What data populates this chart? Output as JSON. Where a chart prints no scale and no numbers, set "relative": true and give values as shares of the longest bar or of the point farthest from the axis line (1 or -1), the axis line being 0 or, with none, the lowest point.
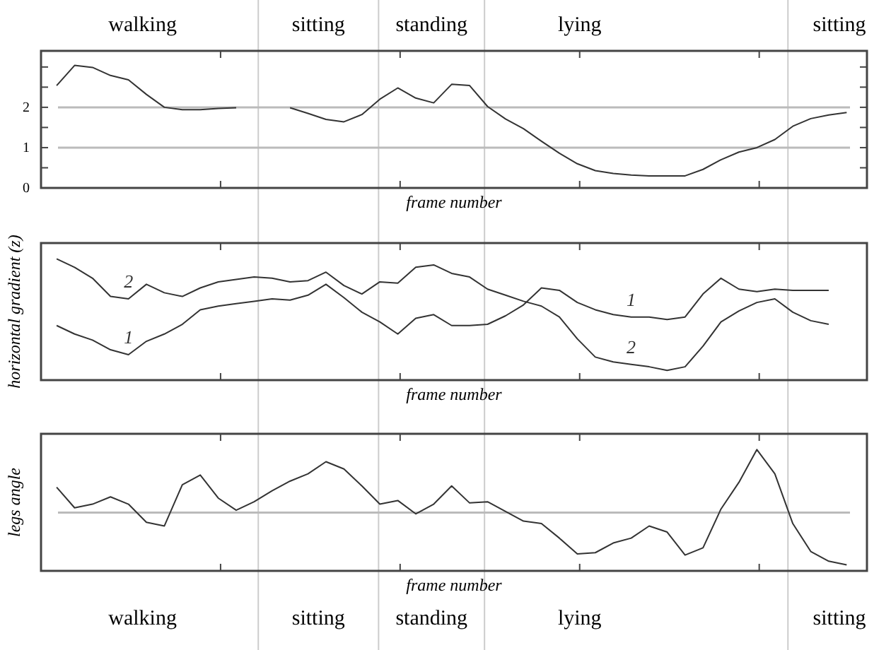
{
  "chart_data": [
    {
      "type": "line",
      "xlabel": "frame number",
      "tick_labels": "y",
      "categories": [
        null,
        null,
        null,
        null,
        null,
        null,
        null,
        null,
        null,
        null,
        null,
        null,
        null,
        null,
        null,
        null,
        null,
        null,
        null,
        null,
        null,
        null,
        null,
        null,
        null,
        null,
        null,
        null,
        null,
        null,
        null,
        null,
        null,
        null,
        null,
        null,
        null,
        null,
        null,
        null,
        null,
        null,
        null,
        null,
        null
      ],
      "ylim": [
        0,
        3.4
      ],
      "yticks": [
        0,
        {
          "value": 0.5,
          "label": null
        },
        1,
        {
          "value": 1.5,
          "label": null
        },
        2,
        {
          "value": 2.5,
          "label": null
        },
        {
          "value": 3,
          "label": null
        }
      ],
      "series": [
        {
          "color": "#333333",
          "values": [
            2.54,
            3.04,
            2.99,
            2.79,
            2.68,
            2.32,
            2.0,
            1.94,
            1.94,
            1.97,
            1.99,
            null,
            null,
            null,
            null,
            null,
            null,
            null,
            null,
            null,
            null,
            null,
            null,
            null,
            null,
            null,
            null,
            null,
            null,
            null,
            null,
            null,
            null,
            null,
            null,
            null,
            null,
            null,
            null,
            null,
            null,
            null,
            null,
            null,
            null
          ]
        },
        {
          "color": "#333333",
          "values": [
            null,
            null,
            null,
            null,
            null,
            null,
            null,
            null,
            null,
            null,
            null,
            null,
            null,
            1.99,
            1.85,
            1.7,
            1.64,
            1.82,
            2.2,
            2.48,
            2.23,
            2.11,
            2.57,
            2.54,
            2.02,
            1.71,
            1.47,
            1.16,
            0.86,
            0.6,
            0.43,
            0.36,
            0.32,
            0.3,
            0.3,
            0.3,
            0.46,
            0.7,
            0.89,
            1.0,
            1.2,
            1.53,
            1.72,
            1.81,
            1.87
          ]
        }
      ],
      "ref_lines": [
        {
          "axis": "y",
          "value": 1,
          "color": "#bbbbbb"
        },
        {
          "axis": "y",
          "value": 2,
          "color": "#bbbbbb"
        }
      ],
      "annotations": [
        "walking",
        "sitting",
        "standing",
        "lying",
        "sitting"
      ]
    },
    {
      "type": "line",
      "ylabel": "horizontal gradient (z)",
      "xlabel": "frame number",
      "relative": true,
      "tick_labels": false,
      "categories": [
        null,
        null,
        null,
        null,
        null,
        null,
        null,
        null,
        null,
        null,
        null,
        null,
        null,
        null,
        null,
        null,
        null,
        null,
        null,
        null,
        null,
        null,
        null,
        null,
        null,
        null,
        null,
        null,
        null,
        null,
        null,
        null,
        null,
        null,
        null,
        null,
        null,
        null,
        null,
        null,
        null,
        null,
        null,
        null,
        null
      ],
      "series": [
        {
          "name": "2",
          "color": "#333333",
          "values": [
            1.0,
            0.93,
            0.84,
            0.69,
            0.67,
            0.79,
            0.72,
            0.69,
            0.76,
            0.81,
            0.83,
            0.85,
            0.84,
            0.81,
            0.82,
            0.89,
            0.78,
            0.71,
            0.81,
            0.8,
            0.93,
            0.95,
            0.88,
            0.85,
            0.75,
            0.7,
            0.65,
            0.61,
            0.52,
            0.34,
            0.19,
            0.15,
            0.13,
            0.11,
            0.08,
            0.11,
            0.28,
            0.48,
            0.57,
            0.64,
            0.67,
            0.56,
            0.49,
            0.46,
            null
          ]
        },
        {
          "name": "1",
          "color": "#333333",
          "values": [
            0.45,
            0.38,
            0.33,
            0.25,
            0.21,
            0.32,
            0.38,
            0.46,
            0.58,
            0.61,
            0.63,
            0.65,
            0.67,
            0.66,
            0.7,
            0.79,
            0.68,
            0.56,
            0.48,
            0.38,
            0.51,
            0.54,
            0.45,
            0.45,
            0.46,
            0.53,
            0.62,
            0.76,
            0.74,
            0.64,
            0.58,
            0.54,
            0.52,
            0.52,
            0.5,
            0.52,
            0.71,
            0.84,
            0.75,
            0.73,
            0.75,
            0.74,
            0.74,
            0.74,
            null
          ]
        }
      ]
    },
    {
      "type": "line",
      "ylabel": "legs angle",
      "xlabel": "frame number",
      "relative": true,
      "tick_labels": false,
      "categories": [
        null,
        null,
        null,
        null,
        null,
        null,
        null,
        null,
        null,
        null,
        null,
        null,
        null,
        null,
        null,
        null,
        null,
        null,
        null,
        null,
        null,
        null,
        null,
        null,
        null,
        null,
        null,
        null,
        null,
        null,
        null,
        null,
        null,
        null,
        null,
        null,
        null,
        null,
        null,
        null,
        null,
        null,
        null,
        null,
        null
      ],
      "series": [
        {
          "color": "#333333",
          "values": [
            0.69,
            0.52,
            0.55,
            0.61,
            0.55,
            0.4,
            0.37,
            0.71,
            0.79,
            0.6,
            0.5,
            0.57,
            0.66,
            0.74,
            0.8,
            0.9,
            0.84,
            0.7,
            0.55,
            0.58,
            0.47,
            0.55,
            0.7,
            0.56,
            0.57,
            0.49,
            0.41,
            0.39,
            0.27,
            0.14,
            0.15,
            0.23,
            0.27,
            0.37,
            0.32,
            0.13,
            0.19,
            0.51,
            0.73,
            1.0,
            0.8,
            0.39,
            0.16,
            0.08,
            0.05
          ]
        }
      ],
      "ref_lines": [
        {
          "axis": "y",
          "value": 0.48,
          "color": "#bbbbbb"
        }
      ],
      "annotations": [
        "walking",
        "sitting",
        "standing",
        "lying",
        "sitting"
      ]
    }
  ]
}
